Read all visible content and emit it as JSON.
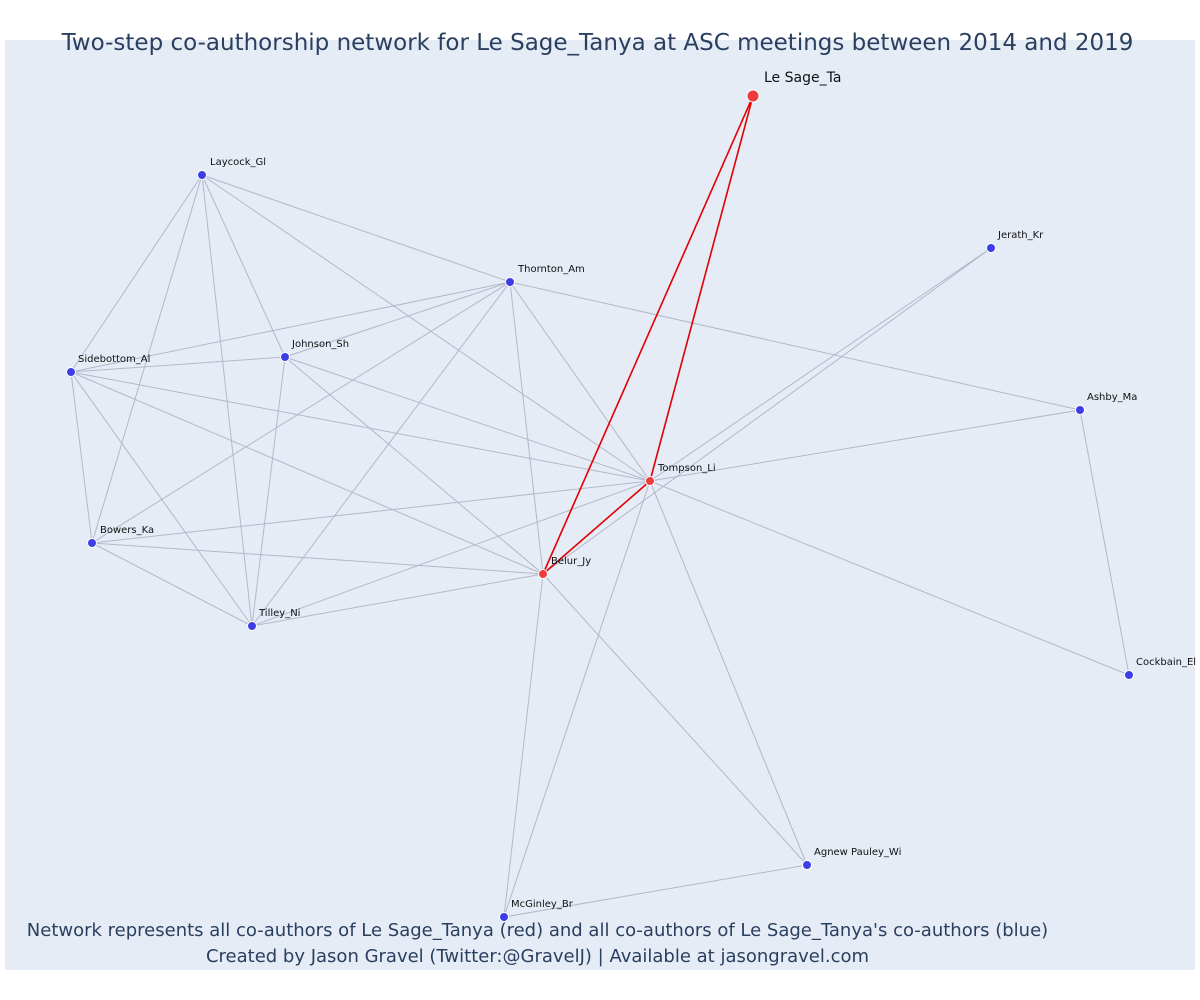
{
  "title": "Two-step co-authorship network for Le Sage_Tanya at ASC meetings between 2014 and 2019",
  "caption": {
    "line1": "Network represents all co-authors of Le Sage_Tanya (red) and all co-authors of Le Sage_Tanya's co-authors (blue)",
    "line2": "Created by Jason Gravel (Twitter:@GravelJ) | Available at jasongravel.com"
  },
  "colors": {
    "plot_bg": "#e5ecf6",
    "text": "#2a3f5f",
    "red_node": "#ef3b3b",
    "blue_node": "#3e3ee6",
    "plain_edge": "#b4b7c8",
    "red_edge": "#e30000"
  },
  "nodes": [
    {
      "id": "le_sage_ta",
      "label": "Le Sage_Ta",
      "group": "focal"
    },
    {
      "id": "tompson_li",
      "label": "Tompson_Li",
      "group": "red"
    },
    {
      "id": "belur_jy",
      "label": "Belur_Jy",
      "group": "red"
    },
    {
      "id": "laycock_gl",
      "label": "Laycock_Gl",
      "group": "blue"
    },
    {
      "id": "thornton_am",
      "label": "Thornton_Am",
      "group": "blue"
    },
    {
      "id": "jerath_kr",
      "label": "Jerath_Kr",
      "group": "blue"
    },
    {
      "id": "sidebottom_al",
      "label": "Sidebottom_Al",
      "group": "blue"
    },
    {
      "id": "johnson_sh",
      "label": "Johnson_Sh",
      "group": "blue"
    },
    {
      "id": "ashby_ma",
      "label": "Ashby_Ma",
      "group": "blue"
    },
    {
      "id": "bowers_ka",
      "label": "Bowers_Ka",
      "group": "blue"
    },
    {
      "id": "tilley_ni",
      "label": "Tilley_Ni",
      "group": "blue"
    },
    {
      "id": "cockbain_el",
      "label": "Cockbain_El",
      "group": "blue"
    },
    {
      "id": "agnew_pauley_wi",
      "label": "Agnew Pauley_Wi",
      "group": "blue"
    },
    {
      "id": "mcginley_br",
      "label": "McGinley_Br",
      "group": "blue"
    }
  ],
  "edges": [
    [
      "le_sage_ta",
      "tompson_li",
      "red"
    ],
    [
      "le_sage_ta",
      "belur_jy",
      "red"
    ],
    [
      "tompson_li",
      "belur_jy",
      "red"
    ],
    [
      "laycock_gl",
      "thornton_am",
      "plain"
    ],
    [
      "laycock_gl",
      "sidebottom_al",
      "plain"
    ],
    [
      "laycock_gl",
      "johnson_sh",
      "plain"
    ],
    [
      "laycock_gl",
      "bowers_ka",
      "plain"
    ],
    [
      "laycock_gl",
      "tilley_ni",
      "plain"
    ],
    [
      "laycock_gl",
      "tompson_li",
      "plain"
    ],
    [
      "thornton_am",
      "sidebottom_al",
      "plain"
    ],
    [
      "thornton_am",
      "johnson_sh",
      "plain"
    ],
    [
      "thornton_am",
      "bowers_ka",
      "plain"
    ],
    [
      "thornton_am",
      "tilley_ni",
      "plain"
    ],
    [
      "thornton_am",
      "tompson_li",
      "plain"
    ],
    [
      "thornton_am",
      "belur_jy",
      "plain"
    ],
    [
      "thornton_am",
      "ashby_ma",
      "plain"
    ],
    [
      "sidebottom_al",
      "johnson_sh",
      "plain"
    ],
    [
      "sidebottom_al",
      "bowers_ka",
      "plain"
    ],
    [
      "sidebottom_al",
      "tilley_ni",
      "plain"
    ],
    [
      "sidebottom_al",
      "tompson_li",
      "plain"
    ],
    [
      "sidebottom_al",
      "belur_jy",
      "plain"
    ],
    [
      "johnson_sh",
      "tilley_ni",
      "plain"
    ],
    [
      "johnson_sh",
      "tompson_li",
      "plain"
    ],
    [
      "johnson_sh",
      "belur_jy",
      "plain"
    ],
    [
      "bowers_ka",
      "tilley_ni",
      "plain"
    ],
    [
      "bowers_ka",
      "tompson_li",
      "plain"
    ],
    [
      "bowers_ka",
      "belur_jy",
      "plain"
    ],
    [
      "tilley_ni",
      "belur_jy",
      "plain"
    ],
    [
      "tilley_ni",
      "tompson_li",
      "plain"
    ],
    [
      "tompson_li",
      "jerath_kr",
      "plain"
    ],
    [
      "belur_jy",
      "jerath_kr",
      "plain"
    ],
    [
      "tompson_li",
      "ashby_ma",
      "plain"
    ],
    [
      "tompson_li",
      "cockbain_el",
      "plain"
    ],
    [
      "ashby_ma",
      "cockbain_el",
      "plain"
    ],
    [
      "tompson_li",
      "agnew_pauley_wi",
      "plain"
    ],
    [
      "tompson_li",
      "mcginley_br",
      "plain"
    ],
    [
      "belur_jy",
      "agnew_pauley_wi",
      "plain"
    ],
    [
      "belur_jy",
      "mcginley_br",
      "plain"
    ],
    [
      "agnew_pauley_wi",
      "mcginley_br",
      "plain"
    ]
  ]
}
